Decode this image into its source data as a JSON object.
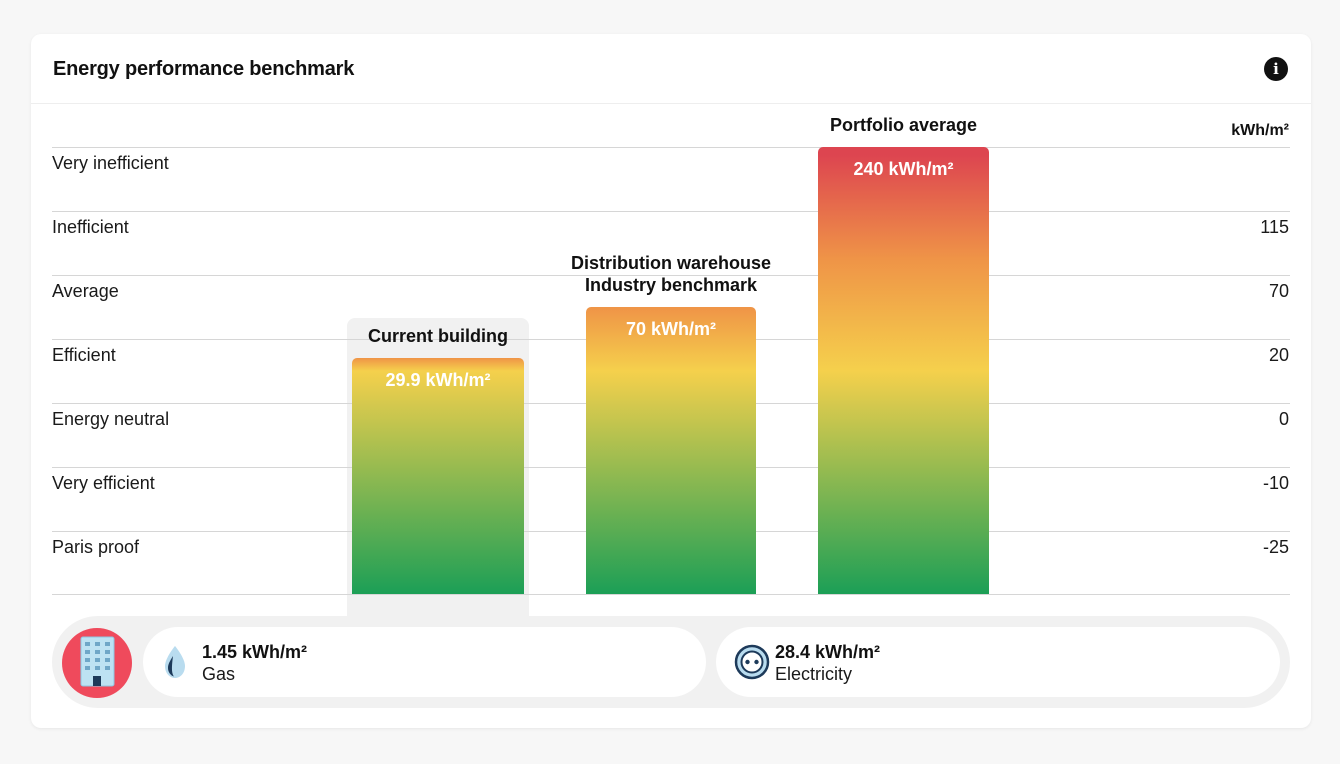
{
  "card": {
    "title": "Energy performance benchmark",
    "info_icon": "info-icon"
  },
  "chart_data": {
    "type": "bar",
    "unit_label": "kWh/m²",
    "scale": {
      "rows": [
        {
          "label": "Very inefficient",
          "value": ""
        },
        {
          "label": "Inefficient",
          "value": "115"
        },
        {
          "label": "Average",
          "value": "70"
        },
        {
          "label": "Efficient",
          "value": "20"
        },
        {
          "label": "Energy neutral",
          "value": "0"
        },
        {
          "label": "Very efficient",
          "value": "-10"
        },
        {
          "label": "Paris proof",
          "value": "-25"
        }
      ]
    },
    "bars": [
      {
        "title_lines": [
          "Current building"
        ],
        "value": 29.9,
        "value_label": "29.9 kWh/m²",
        "highlighted": true
      },
      {
        "title_lines": [
          "Distribution warehouse",
          "Industry benchmark"
        ],
        "value": 70,
        "value_label": "70 kWh/m²",
        "highlighted": false
      },
      {
        "title_lines": [
          "Portfolio average"
        ],
        "value": 240,
        "value_label": "240 kWh/m²",
        "highlighted": false
      }
    ],
    "colors": {
      "red": "#dd4550",
      "orange": "#ef9447",
      "yellow": "#f5d04c",
      "green": "#1c9f56"
    }
  },
  "footer": {
    "building_icon": "building-icon",
    "building_color": "#ef4a5c",
    "breakdown": [
      {
        "icon": "gas-flame-icon",
        "value": "1.45 kWh/m²",
        "label": "Gas"
      },
      {
        "icon": "electricity-socket-icon",
        "value": "28.4 kWh/m²",
        "label": "Electricity"
      }
    ]
  }
}
